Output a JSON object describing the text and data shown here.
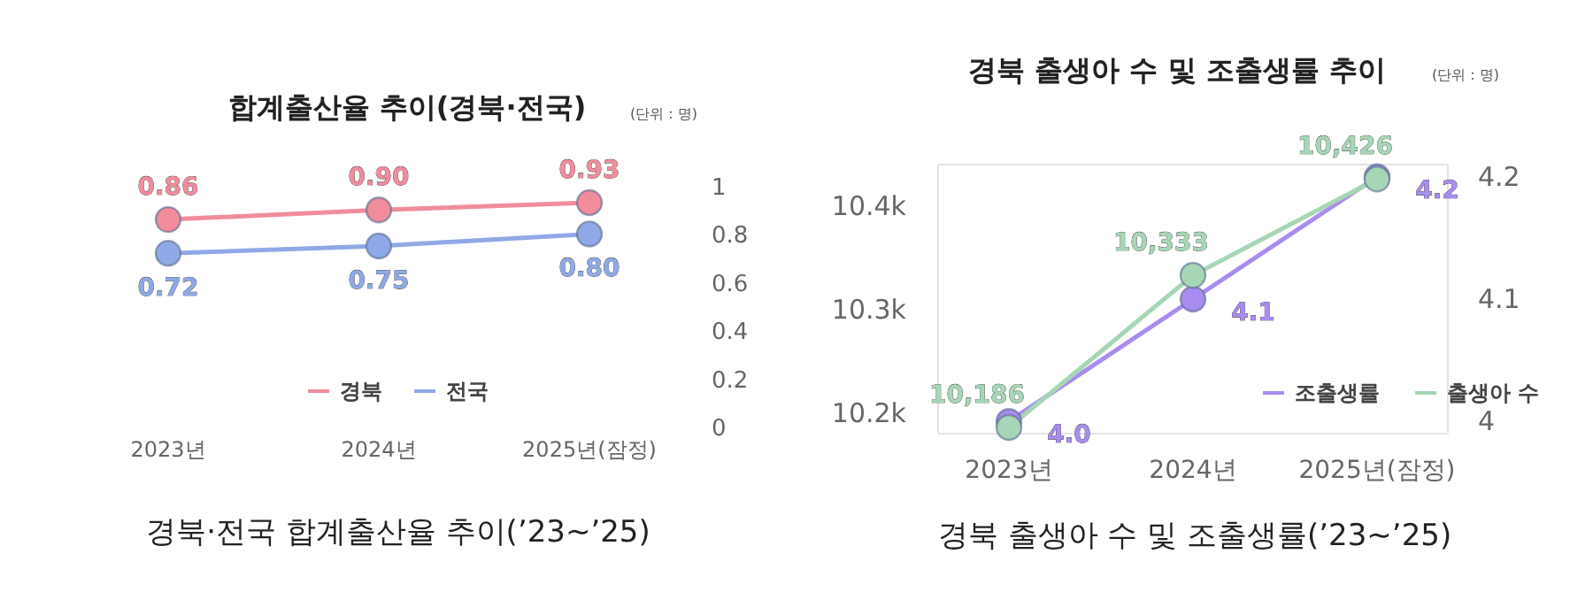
{
  "chart_data": [
    {
      "type": "line",
      "title": "합계출산율 추이(경북·전국)",
      "subtitle": "(단위 : 명)",
      "categories": [
        "2023년",
        "2024년",
        "2025년(잠정)"
      ],
      "series": [
        {
          "name": "경북",
          "color": "#f08c9c",
          "values": [
            0.86,
            0.9,
            0.93
          ],
          "value_labels": [
            "0.86",
            "0.90",
            "0.93"
          ]
        },
        {
          "name": "전국",
          "color": "#8fa9e6",
          "values": [
            0.72,
            0.75,
            0.8
          ],
          "value_labels": [
            "0.72",
            "0.75",
            "0.80"
          ]
        }
      ],
      "ylim": [
        0,
        1
      ],
      "yticks": [
        0,
        0.2,
        0.4,
        0.6,
        0.8,
        1
      ],
      "marker": "circle",
      "legend": "bottom",
      "annotations": [
        "경북·전국 합계출산율 추이(’23~’25)"
      ]
    },
    {
      "type": "line",
      "title": "경북 출생아 수 및 조출생률 추이",
      "subtitle": "(단위 : 명)",
      "categories": [
        "2023년",
        "2024년",
        "2025년(잠정)"
      ],
      "series": [
        {
          "name": "조출생률",
          "color": "#a98cf0",
          "axis": "y2",
          "values": [
            4.0,
            4.1,
            4.2
          ],
          "value_labels": [
            "4.0",
            "4.1",
            "4.2"
          ]
        },
        {
          "name": "출생아 수",
          "color": "#a6d6b6",
          "values": [
            10186,
            10333,
            10426
          ],
          "value_labels": [
            "10,186",
            "10,333",
            "10,426"
          ]
        }
      ],
      "ylim": [
        10180,
        10440
      ],
      "yticks": [
        {
          "value": 10200,
          "label": "10.2k"
        },
        {
          "value": 10300,
          "label": "10.3k"
        },
        {
          "value": 10400,
          "label": "10.4k"
        }
      ],
      "y2lim": [
        3.99,
        4.21
      ],
      "y2ticks": [
        4,
        4.1,
        4.2
      ],
      "marker": "circle",
      "legend": "bottom right",
      "annotations": [
        "경북 출생아 수 및 조출생률(’23~’25)"
      ]
    }
  ]
}
